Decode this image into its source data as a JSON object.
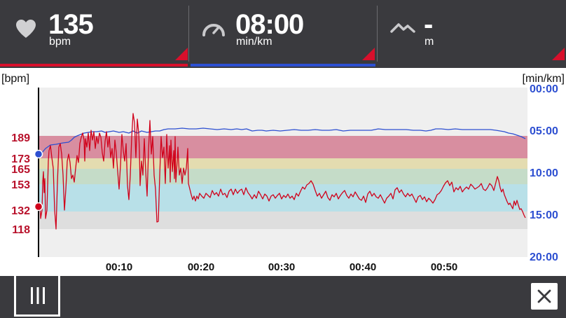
{
  "header": {
    "heart_rate": {
      "icon": "heart-icon",
      "value": "135",
      "unit": "bpm"
    },
    "pace": {
      "icon": "speedometer-icon",
      "value": "08:00",
      "unit": "min/km"
    },
    "elevation": {
      "icon": "mountain-icon",
      "value": "-",
      "unit": "m"
    }
  },
  "chart": {
    "left_axis_label": "[bpm]",
    "right_axis_label": "[min/km]",
    "hr_zone_ticks": [
      "189",
      "173",
      "165",
      "153",
      "132",
      "118"
    ],
    "pace_ticks": [
      "00:00",
      "05:00",
      "10:00",
      "15:00",
      "20:00"
    ],
    "time_ticks": [
      "00:10",
      "00:20",
      "00:30",
      "00:40",
      "00:50"
    ],
    "colors": {
      "hr_line": "#d0021b",
      "pace_line": "#2d4fd1",
      "zone_red": "#d88ea0",
      "zone_yellow": "#e4dcb0",
      "zone_green": "#c5dcc8",
      "zone_blue": "#b8e0e8",
      "zone_gray": "#dedede"
    }
  },
  "chart_data": {
    "type": "line",
    "xlabel": "",
    "x_range_minutes": [
      0,
      60
    ],
    "left_axis": {
      "label": "[bpm]",
      "ticks": [
        189,
        173,
        165,
        153,
        132,
        118
      ]
    },
    "right_axis": {
      "label": "[min/km]",
      "ticks": [
        "00:00",
        "05:00",
        "10:00",
        "15:00",
        "20:00"
      ]
    },
    "series": [
      {
        "axis": "left",
        "values_sampled": [
          150,
          170,
          180,
          182,
          186,
          188,
          192,
          170,
          185,
          130,
          185,
          150,
          140,
          140,
          143,
          145,
          142,
          145,
          140,
          145,
          142,
          140,
          145,
          150,
          152,
          140
        ]
      },
      {
        "axis": "right",
        "values_sampled_min_per_km": [
          7.0,
          6.5,
          5.8,
          5.3,
          5.0,
          5.0,
          4.8,
          4.8,
          4.9,
          4.8,
          4.9,
          4.9,
          5.0,
          5.0,
          4.9,
          5.1,
          4.9,
          5.0,
          4.9,
          4.8,
          4.9,
          4.9,
          5.0,
          5.9
        ]
      }
    ],
    "zones_bpm": [
      [
        173,
        189
      ],
      [
        165,
        173
      ],
      [
        153,
        165
      ],
      [
        132,
        153
      ],
      [
        118,
        132
      ]
    ]
  },
  "footer": {
    "menu_icon": "menu-bars-icon",
    "close_icon": "close-icon"
  }
}
